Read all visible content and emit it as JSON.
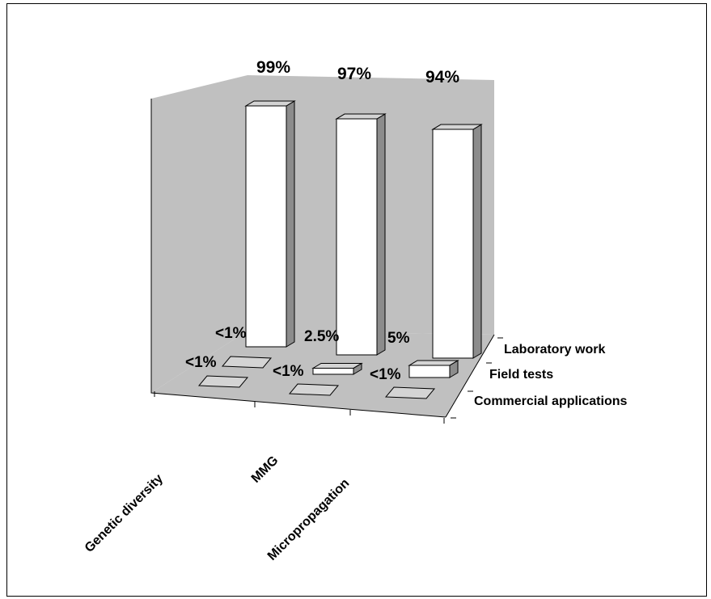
{
  "chart_data": {
    "type": "bar",
    "title": "",
    "categories": [
      "Genetic diversity",
      "MMG",
      "Micropropagation"
    ],
    "series": [
      {
        "name": "Laboratory work",
        "values": [
          99,
          97,
          94
        ],
        "labels": [
          "99%",
          "97%",
          "94%"
        ]
      },
      {
        "name": "Field tests",
        "values": [
          0.5,
          2.5,
          5
        ],
        "labels": [
          "<1%",
          "2.5%",
          "5%"
        ]
      },
      {
        "name": "Commercial applications",
        "values": [
          0.5,
          0.5,
          0.5
        ],
        "labels": [
          "<1%",
          "<1%",
          "<1%"
        ]
      }
    ],
    "ylim": [
      0,
      100
    ],
    "grid": false,
    "three_d": true,
    "colors": {
      "bar_face": "#ffffff",
      "bar_side": "#8c8c8c",
      "bar_top": "#d4d4d4",
      "back_wall": "#c0c0c0",
      "floor": "#c0c0c0",
      "edge": "#000000"
    }
  }
}
